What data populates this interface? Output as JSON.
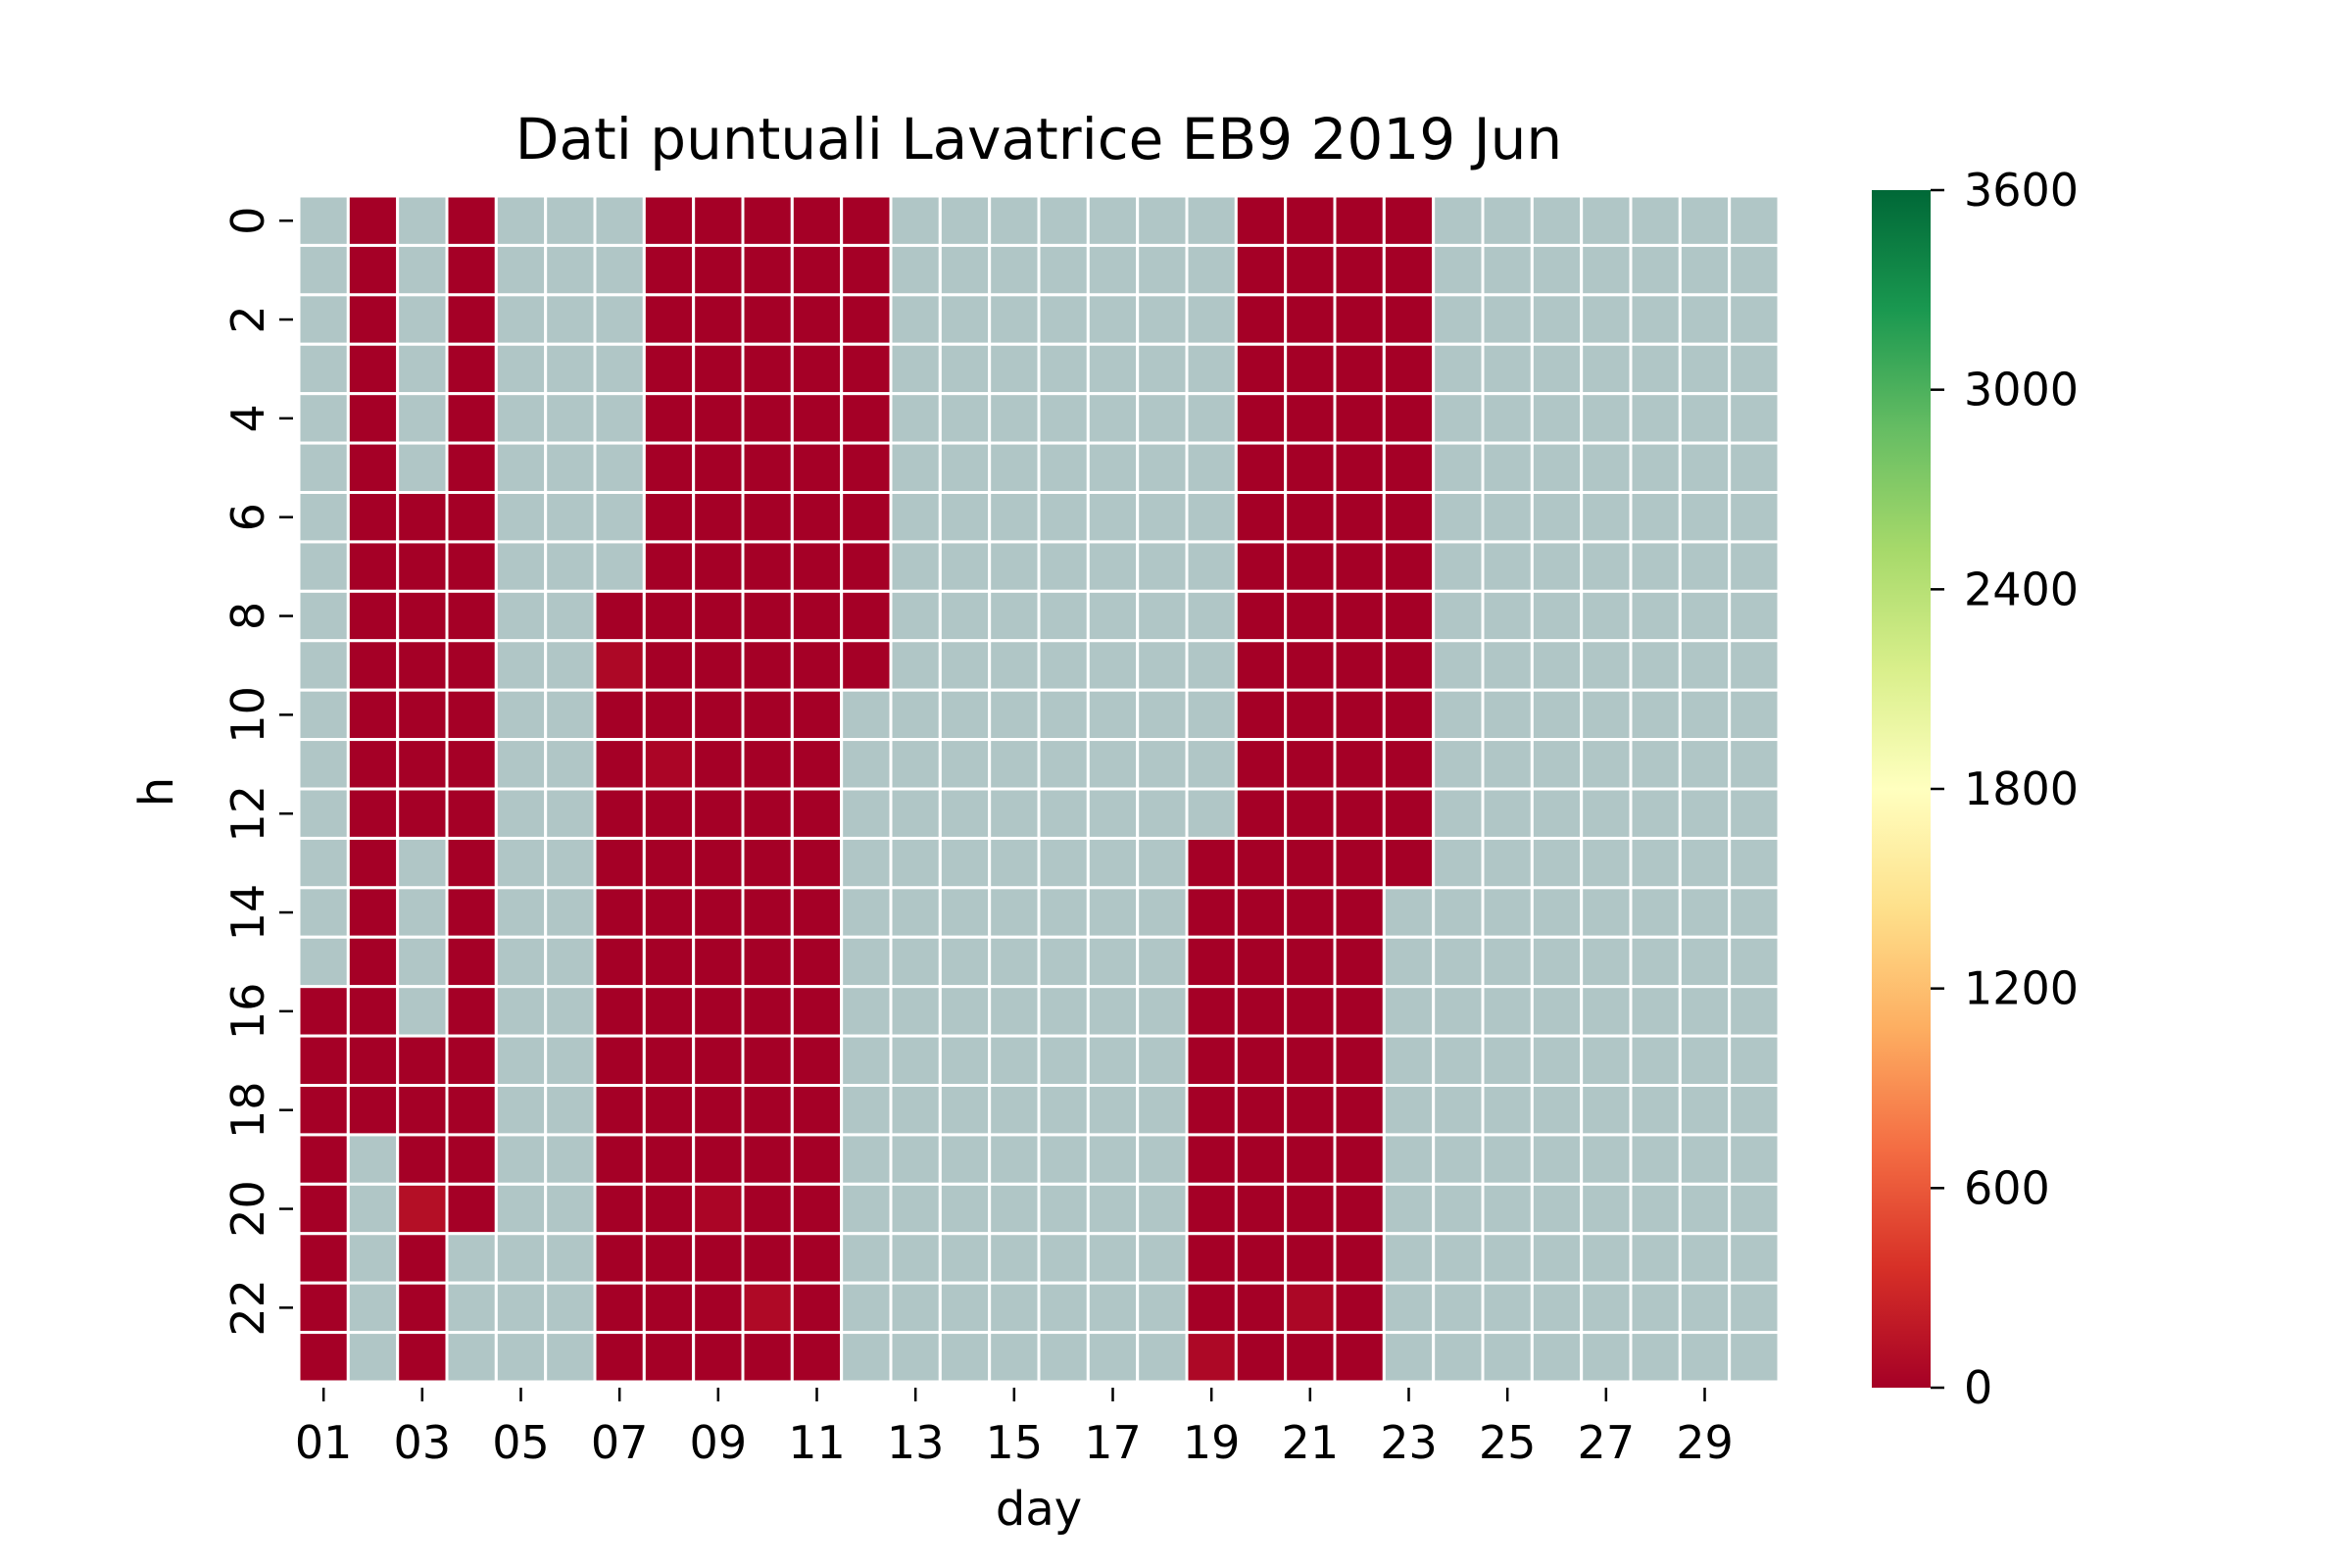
{
  "chart_data": {
    "type": "heatmap",
    "title": "Dati puntuali Lavatrice EB9 2019 Jun",
    "xlabel": "day",
    "ylabel": "h",
    "x_tick_labels": [
      "01",
      "03",
      "05",
      "07",
      "09",
      "11",
      "13",
      "15",
      "17",
      "19",
      "21",
      "23",
      "25",
      "27",
      "29"
    ],
    "x_tick_days": [
      1,
      3,
      5,
      7,
      9,
      11,
      13,
      15,
      17,
      19,
      21,
      23,
      25,
      27,
      29
    ],
    "y_tick_labels": [
      "0",
      "2",
      "4",
      "6",
      "8",
      "10",
      "12",
      "14",
      "16",
      "18",
      "20",
      "22"
    ],
    "y_tick_hours": [
      0,
      2,
      4,
      6,
      8,
      10,
      12,
      14,
      16,
      18,
      20,
      22
    ],
    "days": 30,
    "hours": 24,
    "missing_value_color": "#b0c6c6",
    "cell_border_color": "#ffffff",
    "colorbar": {
      "min": 0,
      "max": 3600,
      "ticks": [
        0,
        600,
        1200,
        1800,
        2400,
        3000,
        3600
      ],
      "tick_labels": [
        "0",
        "600",
        "1200",
        "1800",
        "2400",
        "3000",
        "3600"
      ],
      "colormap": "RdYlGn",
      "colormap_stops": [
        "#a50026",
        "#d73027",
        "#f46d43",
        "#fdae61",
        "#fee08b",
        "#ffffbf",
        "#d9ef8b",
        "#a6d96a",
        "#66bd63",
        "#1a9850",
        "#006837"
      ]
    },
    "active_ranges": [
      {
        "day": 1,
        "from_hour": 16,
        "to_hour": 23
      },
      {
        "day": 2,
        "from_hour": 0,
        "to_hour": 18
      },
      {
        "day": 3,
        "from_hour": 6,
        "to_hour": 12
      },
      {
        "day": 3,
        "from_hour": 17,
        "to_hour": 23
      },
      {
        "day": 4,
        "from_hour": 0,
        "to_hour": 20
      },
      {
        "day": 7,
        "from_hour": 8,
        "to_hour": 23
      },
      {
        "day": 8,
        "from_hour": 0,
        "to_hour": 23
      },
      {
        "day": 9,
        "from_hour": 0,
        "to_hour": 23
      },
      {
        "day": 10,
        "from_hour": 0,
        "to_hour": 23
      },
      {
        "day": 11,
        "from_hour": 0,
        "to_hour": 23
      },
      {
        "day": 12,
        "from_hour": 0,
        "to_hour": 9
      },
      {
        "day": 19,
        "from_hour": 13,
        "to_hour": 23
      },
      {
        "day": 20,
        "from_hour": 0,
        "to_hour": 23
      },
      {
        "day": 21,
        "from_hour": 0,
        "to_hour": 23
      },
      {
        "day": 22,
        "from_hour": 0,
        "to_hour": 23
      },
      {
        "day": 23,
        "from_hour": 0,
        "to_hour": 13
      }
    ],
    "active_default_value": 0,
    "special_values": [
      {
        "day": 7,
        "hour": 9,
        "value": 60
      },
      {
        "day": 8,
        "hour": 11,
        "value": 40
      },
      {
        "day": 3,
        "hour": 20,
        "value": 110
      },
      {
        "day": 9,
        "hour": 20,
        "value": 40
      },
      {
        "day": 10,
        "hour": 22,
        "value": 70
      },
      {
        "day": 21,
        "hour": 22,
        "value": 50
      },
      {
        "day": 19,
        "hour": 23,
        "value": 60
      }
    ]
  }
}
